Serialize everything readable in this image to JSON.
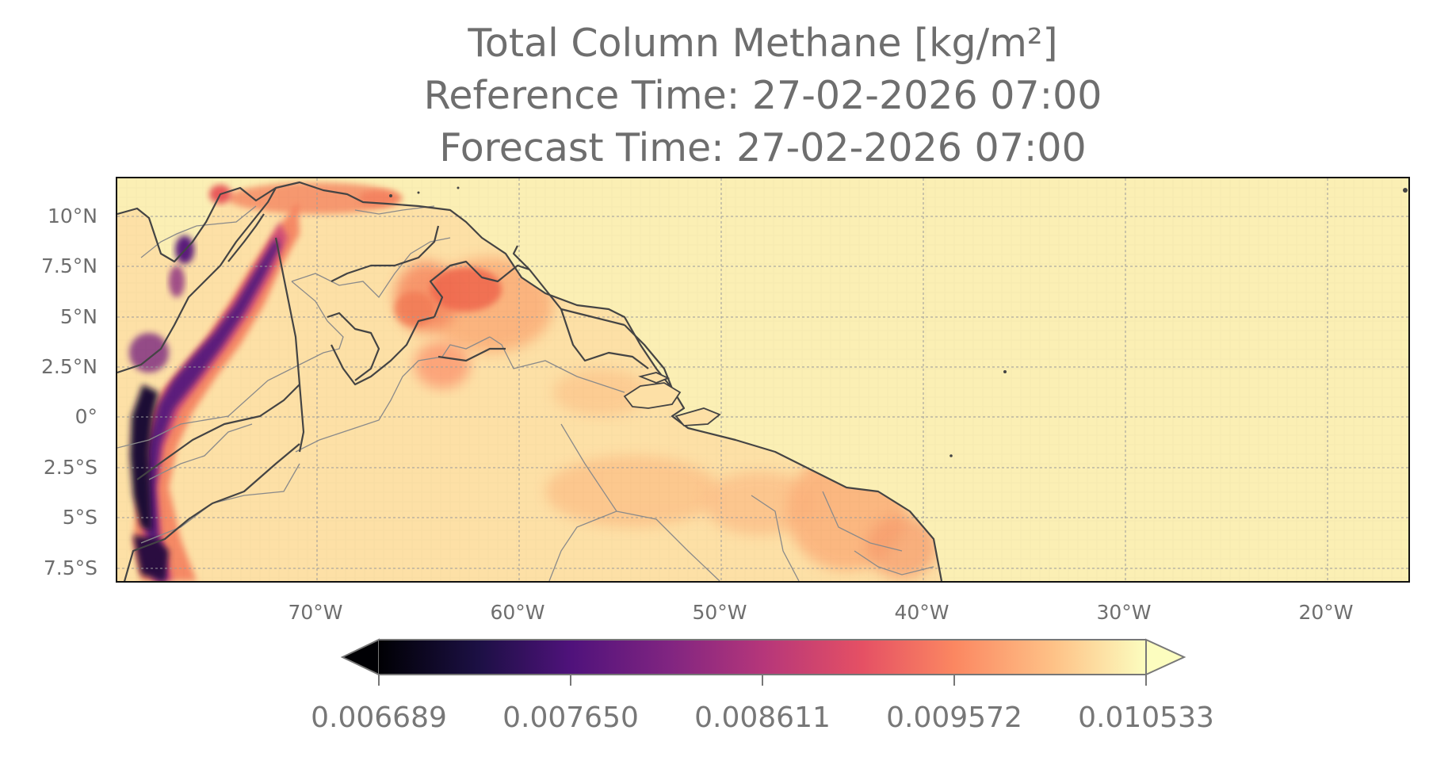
{
  "title": {
    "line1": "Total Column Methane [kg/m²]",
    "line2": "Reference Time: 27-02-2026 07:00",
    "line3": "Forecast Time: 27-02-2026 07:00"
  },
  "map": {
    "projection": "PlateCarree",
    "lon_range": [
      -80,
      -16
    ],
    "lat_range": [
      -8,
      12
    ],
    "gridlines": true,
    "lat_ticks": [
      "10°N",
      "7.5°N",
      "5°N",
      "2.5°N",
      "0°",
      "2.5°S",
      "5°S",
      "7.5°S"
    ],
    "lon_ticks": [
      "70°W",
      "60°W",
      "50°W",
      "40°W",
      "30°W",
      "20°W"
    ],
    "field": "total column methane",
    "background_value": 0.0105
  },
  "colorbar": {
    "colormap": "magma",
    "extend": "both",
    "range": [
      0.006689,
      0.010533
    ],
    "tick_labels": [
      "0.006689",
      "0.007650",
      "0.008611",
      "0.009572",
      "0.010533"
    ]
  },
  "colors": {
    "ocean": "#fbefb4",
    "land_light": "#fddca0",
    "land_mid": "#fcb07a",
    "land_high": "#f2764f",
    "andes_dark": "#5a1a7a",
    "andes_black": "#1a0f35",
    "coastline": "#444444",
    "borders": "#888888",
    "grid": "#9a9a9a"
  }
}
